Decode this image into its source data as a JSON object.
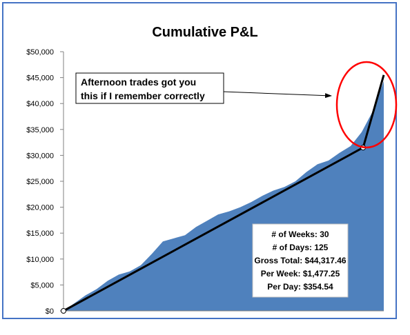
{
  "chart_data": {
    "type": "area",
    "title": "Cumulative P&L",
    "xlabel": "",
    "ylabel": "",
    "ylim": [
      0,
      50000
    ],
    "y_ticks": [
      0,
      5000,
      10000,
      15000,
      20000,
      25000,
      30000,
      35000,
      40000,
      45000,
      50000
    ],
    "y_tick_labels": [
      "$0",
      "$5,000",
      "$10,000",
      "$15,000",
      "$20,000",
      "$25,000",
      "$30,000",
      "$35,000",
      "$40,000",
      "$45,000",
      "$50,000"
    ],
    "grid": false,
    "series": [
      {
        "color": "#4f81bd",
        "values": [
          0,
          1500,
          3000,
          4200,
          5800,
          7000,
          7600,
          8800,
          11000,
          13400,
          14000,
          14600,
          16200,
          17400,
          18600,
          19200,
          20000,
          21000,
          22200,
          23200,
          23900,
          25000,
          26800,
          28300,
          29000,
          30500,
          31800,
          34500,
          38500,
          44317.46
        ]
      }
    ],
    "trend_line": {
      "color": "#000000",
      "points": [
        {
          "index": 0,
          "value": 0
        },
        {
          "index": 29,
          "value": 31500
        },
        {
          "index": 31,
          "value": 45500
        }
      ]
    },
    "annotation": {
      "lines": [
        "Afternoon trades got you",
        "this if I remember correctly"
      ]
    },
    "highlight_color": "#ff0000",
    "stats": [
      "# of Weeks: 30",
      "# of Days: 125",
      "Gross Total: $44,317.46",
      "Per Week: $1,477.25",
      "Per Day: $354.54"
    ]
  }
}
